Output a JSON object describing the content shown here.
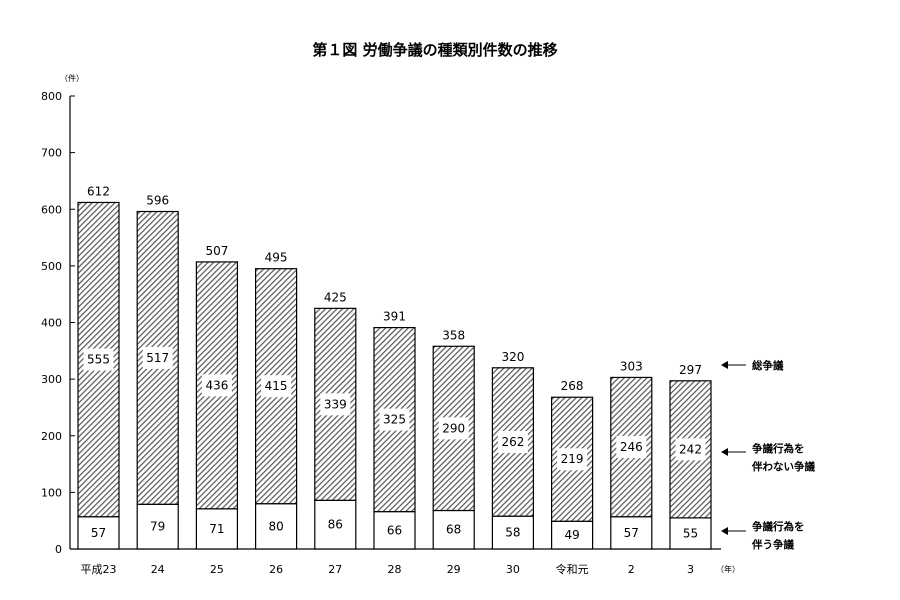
{
  "chart_data": {
    "type": "bar",
    "title": "第１図 労働争議の種類別件数の推移",
    "y_unit": "（件）",
    "x_unit": "（年）",
    "categories": [
      "平成23",
      "24",
      "25",
      "26",
      "27",
      "28",
      "29",
      "30",
      "令和元",
      "2",
      "3"
    ],
    "ylim": [
      0,
      800
    ],
    "yticks": [
      0,
      100,
      200,
      300,
      400,
      500,
      600,
      700,
      800
    ],
    "totals": [
      612,
      596,
      507,
      495,
      425,
      391,
      358,
      320,
      268,
      303,
      297
    ],
    "series": [
      {
        "name": "争議行為を伴う争議",
        "values": [
          57,
          79,
          71,
          80,
          86,
          66,
          68,
          58,
          49,
          57,
          55
        ]
      },
      {
        "name": "争議行為を伴わない争議",
        "values": [
          555,
          517,
          436,
          415,
          339,
          325,
          290,
          262,
          219,
          246,
          242
        ]
      }
    ],
    "legend": {
      "total": "総争議",
      "without_line1": "争議行為を",
      "without_line2": "伴わない争議",
      "with_line1": "争議行為を",
      "with_line2": "伴う争議"
    },
    "grid": false
  }
}
